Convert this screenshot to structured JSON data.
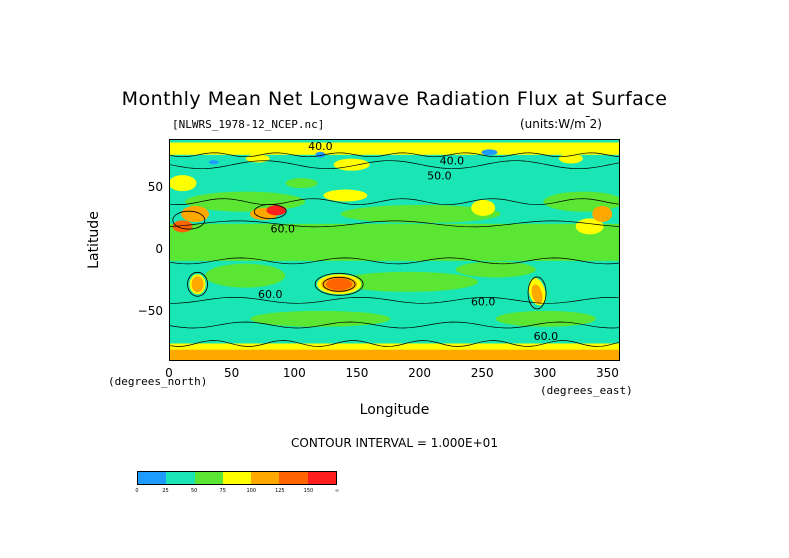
{
  "chart_data": {
    "type": "heatmap",
    "title": "Monthly Mean Net Longwave Radiation Flux at Surface",
    "file_label": "[NLWRS_1978-12_NCEP.nc]",
    "units_label": "(units:W/m^2)",
    "xlabel": "Longitude",
    "ylabel": "Latitude",
    "x_units": "(degrees_east)",
    "y_units": "(degrees_north)",
    "xlim": [
      0,
      360
    ],
    "ylim": [
      -90,
      90
    ],
    "xticks": [
      {
        "v": 0,
        "label": "0"
      },
      {
        "v": 50,
        "label": "50"
      },
      {
        "v": 100,
        "label": "100"
      },
      {
        "v": 150,
        "label": "150"
      },
      {
        "v": 200,
        "label": "200"
      },
      {
        "v": 250,
        "label": "250"
      },
      {
        "v": 300,
        "label": "300"
      },
      {
        "v": 350,
        "label": "350"
      }
    ],
    "yticks": [
      {
        "v": 50,
        "label": "50"
      },
      {
        "v": 0,
        "label": "0"
      },
      {
        "v": -50,
        "label": "−50"
      }
    ],
    "contour_interval_text": "CONTOUR INTERVAL = 1.000E+01",
    "contour_labels": [
      {
        "lon": 120,
        "lat": 82,
        "text": "40.0"
      },
      {
        "lon": 225,
        "lat": 70,
        "text": "40.0"
      },
      {
        "lon": 215,
        "lat": 58,
        "text": "50.0"
      },
      {
        "lon": 90,
        "lat": 15,
        "text": "60.0"
      },
      {
        "lon": 80,
        "lat": -38,
        "text": "60.0"
      },
      {
        "lon": 250,
        "lat": -44,
        "text": "60.0"
      },
      {
        "lon": 300,
        "lat": -72,
        "text": "60.0"
      }
    ],
    "colorbar": {
      "colors": [
        "#1e9bff",
        "#19e6b4",
        "#5ae632",
        "#ffff00",
        "#ffa800",
        "#ff6400",
        "#ff1e1e"
      ],
      "labels": [
        "0",
        "25",
        "50",
        "75",
        "100",
        "125",
        "150",
        "∞"
      ]
    }
  }
}
